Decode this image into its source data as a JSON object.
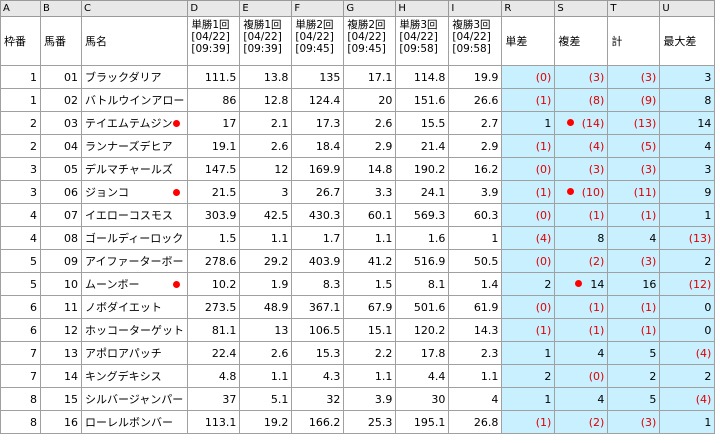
{
  "col_letters": [
    "A",
    "B",
    "C",
    "D",
    "E",
    "F",
    "G",
    "H",
    "I",
    "R",
    "S",
    "T",
    "U"
  ],
  "headers": {
    "waku": "枠番",
    "umaban": "馬番",
    "name": "馬名",
    "d": [
      "単勝1回",
      "[04/22]",
      "[09:39]"
    ],
    "e": [
      "複勝1回",
      "[04/22]",
      "[09:39]"
    ],
    "f": [
      "単勝2回",
      "[04/22]",
      "[09:45]"
    ],
    "g": [
      "複勝2回",
      "[04/22]",
      "[09:45]"
    ],
    "h": [
      "単勝3回",
      "[04/22]",
      "[09:58]"
    ],
    "i": [
      "複勝3回",
      "[04/22]",
      "[09:58]"
    ],
    "r": "単差",
    "s": "複差",
    "t": "計",
    "u": "最大差"
  },
  "rows": [
    {
      "waku": "1",
      "umaban": "01",
      "name": "ブラックダリア",
      "dot": false,
      "d": "111.5",
      "e": "13.8",
      "f": "135",
      "g": "17.1",
      "h": "114.8",
      "i": "19.9",
      "r": "(0)",
      "r_red": true,
      "s": "(3)",
      "s_red": true,
      "s_dot": false,
      "t": "(3)",
      "t_red": true,
      "u": "3",
      "u_red": false
    },
    {
      "waku": "1",
      "umaban": "02",
      "name": "バトルウインアロー",
      "dot": false,
      "d": "86",
      "e": "12.8",
      "f": "124.4",
      "g": "20",
      "h": "151.6",
      "i": "26.6",
      "r": "(1)",
      "r_red": true,
      "s": "(8)",
      "s_red": true,
      "s_dot": false,
      "t": "(9)",
      "t_red": true,
      "u": "8",
      "u_red": false
    },
    {
      "waku": "2",
      "umaban": "03",
      "name": "テイエムテムジン",
      "dot": true,
      "d": "17",
      "e": "2.1",
      "f": "17.3",
      "g": "2.6",
      "h": "15.5",
      "i": "2.7",
      "r": "1",
      "r_red": false,
      "s": "(14)",
      "s_red": true,
      "s_dot": true,
      "t": "(13)",
      "t_red": true,
      "u": "14",
      "u_red": false
    },
    {
      "waku": "2",
      "umaban": "04",
      "name": "ランナーズデヒア",
      "dot": false,
      "d": "19.1",
      "e": "2.6",
      "f": "18.4",
      "g": "2.9",
      "h": "21.4",
      "i": "2.9",
      "r": "(1)",
      "r_red": true,
      "s": "(4)",
      "s_red": true,
      "s_dot": false,
      "t": "(5)",
      "t_red": true,
      "u": "4",
      "u_red": false
    },
    {
      "waku": "3",
      "umaban": "05",
      "name": "デルマチャールズ",
      "dot": false,
      "d": "147.5",
      "e": "12",
      "f": "169.9",
      "g": "14.8",
      "h": "190.2",
      "i": "16.2",
      "r": "(0)",
      "r_red": true,
      "s": "(3)",
      "s_red": true,
      "s_dot": false,
      "t": "(3)",
      "t_red": true,
      "u": "3",
      "u_red": false
    },
    {
      "waku": "3",
      "umaban": "06",
      "name": "ジョンコ",
      "dot": true,
      "d": "21.5",
      "e": "3",
      "f": "26.7",
      "g": "3.3",
      "h": "24.1",
      "i": "3.9",
      "r": "(1)",
      "r_red": true,
      "s": "(10)",
      "s_red": true,
      "s_dot": true,
      "t": "(11)",
      "t_red": true,
      "u": "9",
      "u_red": false
    },
    {
      "waku": "4",
      "umaban": "07",
      "name": "イエローコスモス",
      "dot": false,
      "d": "303.9",
      "e": "42.5",
      "f": "430.3",
      "g": "60.1",
      "h": "569.3",
      "i": "60.3",
      "r": "(0)",
      "r_red": true,
      "s": "(1)",
      "s_red": true,
      "s_dot": false,
      "t": "(1)",
      "t_red": true,
      "u": "1",
      "u_red": false
    },
    {
      "waku": "4",
      "umaban": "08",
      "name": "ゴールディーロック",
      "dot": false,
      "d": "1.5",
      "e": "1.1",
      "f": "1.7",
      "g": "1.1",
      "h": "1.6",
      "i": "1",
      "r": "(4)",
      "r_red": true,
      "s": "8",
      "s_red": false,
      "s_dot": false,
      "t": "4",
      "t_red": false,
      "u": "(13)",
      "u_red": true
    },
    {
      "waku": "5",
      "umaban": "09",
      "name": "アイファーターボー",
      "dot": false,
      "d": "278.6",
      "e": "29.2",
      "f": "403.9",
      "g": "41.2",
      "h": "516.9",
      "i": "50.5",
      "r": "(0)",
      "r_red": true,
      "s": "(2)",
      "s_red": true,
      "s_dot": false,
      "t": "(3)",
      "t_red": true,
      "u": "2",
      "u_red": false
    },
    {
      "waku": "5",
      "umaban": "10",
      "name": "ムーンボー",
      "dot": true,
      "d": "10.2",
      "e": "1.9",
      "f": "8.3",
      "g": "1.5",
      "h": "8.1",
      "i": "1.4",
      "r": "2",
      "r_red": false,
      "s": "14",
      "s_red": false,
      "s_dot": true,
      "t": "16",
      "t_red": false,
      "u": "(12)",
      "u_red": true
    },
    {
      "waku": "6",
      "umaban": "11",
      "name": "ノボダイエット",
      "dot": false,
      "d": "273.5",
      "e": "48.9",
      "f": "367.1",
      "g": "67.9",
      "h": "501.6",
      "i": "61.9",
      "r": "(0)",
      "r_red": true,
      "s": "(1)",
      "s_red": true,
      "s_dot": false,
      "t": "(1)",
      "t_red": true,
      "u": "0",
      "u_red": false
    },
    {
      "waku": "6",
      "umaban": "12",
      "name": "ホッコーターゲット",
      "dot": false,
      "d": "81.1",
      "e": "13",
      "f": "106.5",
      "g": "15.1",
      "h": "120.2",
      "i": "14.3",
      "r": "(1)",
      "r_red": true,
      "s": "(1)",
      "s_red": true,
      "s_dot": false,
      "t": "(1)",
      "t_red": true,
      "u": "0",
      "u_red": false
    },
    {
      "waku": "7",
      "umaban": "13",
      "name": "アポロアパッチ",
      "dot": false,
      "d": "22.4",
      "e": "2.6",
      "f": "15.3",
      "g": "2.2",
      "h": "17.8",
      "i": "2.3",
      "r": "1",
      "r_red": false,
      "s": "4",
      "s_red": false,
      "s_dot": false,
      "t": "5",
      "t_red": false,
      "u": "(4)",
      "u_red": true
    },
    {
      "waku": "7",
      "umaban": "14",
      "name": "キングデキシス",
      "dot": false,
      "d": "4.8",
      "e": "1.1",
      "f": "4.3",
      "g": "1.1",
      "h": "4.4",
      "i": "1.1",
      "r": "2",
      "r_red": false,
      "s": "(0)",
      "s_red": true,
      "s_dot": false,
      "t": "2",
      "t_red": false,
      "u": "2",
      "u_red": false
    },
    {
      "waku": "8",
      "umaban": "15",
      "name": "シルバージャンパー",
      "dot": false,
      "d": "37",
      "e": "5.1",
      "f": "32",
      "g": "3.9",
      "h": "30",
      "i": "4",
      "r": "1",
      "r_red": false,
      "s": "4",
      "s_red": false,
      "s_dot": false,
      "t": "5",
      "t_red": false,
      "u": "(4)",
      "u_red": true
    },
    {
      "waku": "8",
      "umaban": "16",
      "name": "ローレルボンバー",
      "dot": false,
      "d": "113.1",
      "e": "19.2",
      "f": "166.2",
      "g": "25.3",
      "h": "195.1",
      "i": "26.8",
      "r": "(1)",
      "r_red": true,
      "s": "(2)",
      "s_red": true,
      "s_dot": false,
      "t": "(3)",
      "t_red": true,
      "u": "1",
      "u_red": false
    }
  ]
}
